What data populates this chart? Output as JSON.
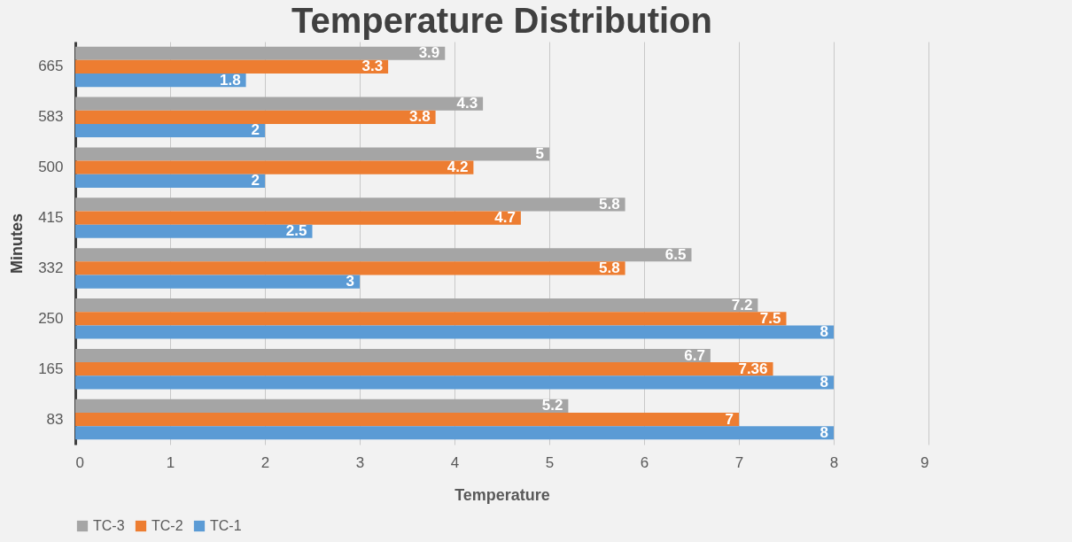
{
  "chart_data": {
    "type": "bar",
    "orientation": "horizontal",
    "title": "Temperature Distribution",
    "xlabel": "Temperature",
    "ylabel": "Minutes",
    "categories": [
      "665",
      "583",
      "500",
      "415",
      "332",
      "250",
      "165",
      "83"
    ],
    "series": [
      {
        "name": "TC-3",
        "color": "#a5a5a5",
        "values": [
          3.9,
          4.3,
          5,
          5.8,
          6.5,
          7.2,
          6.7,
          5.2
        ]
      },
      {
        "name": "TC-2",
        "color": "#ed7d31",
        "values": [
          3.3,
          3.8,
          4.2,
          4.7,
          5.8,
          7.5,
          7.36,
          7
        ]
      },
      {
        "name": "TC-1",
        "color": "#5b9bd5",
        "values": [
          1.8,
          2,
          2,
          2.5,
          3,
          8,
          8,
          8
        ]
      }
    ],
    "xlim": [
      0,
      9
    ],
    "xticks": [
      0,
      1,
      2,
      3,
      4,
      5,
      6,
      7,
      8,
      9
    ],
    "grid": "x",
    "legend": "bottom",
    "data_labels": true
  }
}
